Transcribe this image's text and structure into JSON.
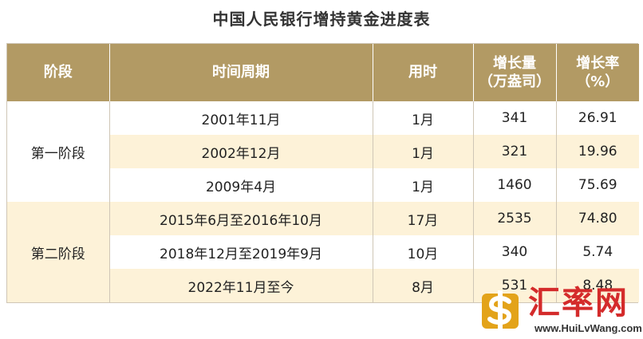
{
  "title": "中国人民银行增持黄金进度表",
  "headers": [
    "阶段",
    "时间周期",
    "用时",
    "增长量\n（万盎司）",
    "增长率\n（%）"
  ],
  "stages": [
    "第一阶段",
    "第二阶段"
  ],
  "rows": [
    {
      "period": "2001年11月",
      "duration": "1月",
      "increase": "341",
      "rate": "26.91"
    },
    {
      "period": "2002年12月",
      "duration": "1月",
      "increase": "321",
      "rate": "19.96"
    },
    {
      "period": "2009年4月",
      "duration": "1月",
      "increase": "1460",
      "rate": "75.69"
    },
    {
      "period": "2015年6月至2016年10月",
      "duration": "17月",
      "increase": "2535",
      "rate": "74.80"
    },
    {
      "period": "2018年12月至2019年9月",
      "duration": "10月",
      "increase": "340",
      "rate": "5.74"
    },
    {
      "period": "2022年11月至今",
      "duration": "8月",
      "increase": "531",
      "rate": "8.48"
    }
  ],
  "watermark": {
    "name": "汇率网",
    "url": "www.HuiLvWang.com"
  },
  "colors": {
    "header": "#b29a64",
    "stripe": "#fdf2d8",
    "watermark_red": "#d42b2b",
    "watermark_gold": "#e3a31a"
  }
}
